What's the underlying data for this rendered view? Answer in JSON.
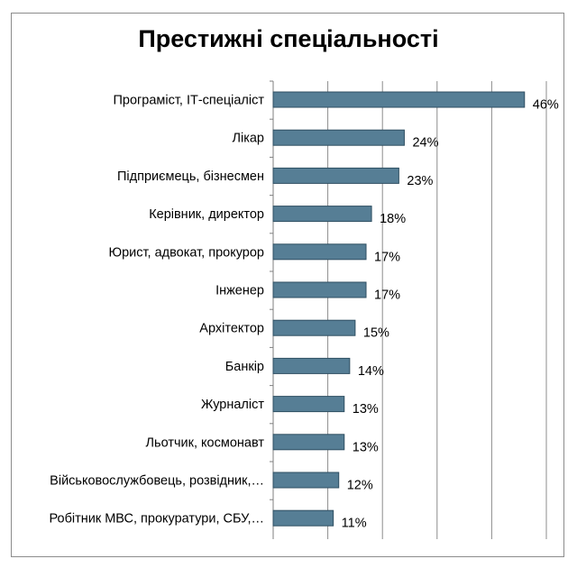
{
  "chart_data": {
    "type": "bar",
    "orientation": "horizontal",
    "title": "Престижні спеціальності",
    "categories": [
      "Програміст, ІТ-спеціаліст",
      "Лікар",
      "Підприємець, бізнесмен",
      "Керівник, директор",
      "Юрист, адвокат, прокурор",
      "Інженер",
      "Архітектор",
      "Банкір",
      "Журналіст",
      "Льотчик, космонавт",
      "Військовослужбовець, розвідник,…",
      "Робітник МВС, прокуратури, СБУ,…"
    ],
    "values": [
      46,
      24,
      23,
      18,
      17,
      17,
      15,
      14,
      13,
      13,
      12,
      11
    ],
    "value_labels": [
      "46%",
      "24%",
      "23%",
      "18%",
      "17%",
      "17%",
      "15%",
      "14%",
      "13%",
      "13%",
      "12%",
      "11%"
    ],
    "xlim": [
      0,
      50
    ],
    "gridlines": [
      0,
      10,
      20,
      30,
      40,
      50
    ],
    "grid": true,
    "bar_color": "#567e95",
    "bar_border": "#2f4f62"
  }
}
